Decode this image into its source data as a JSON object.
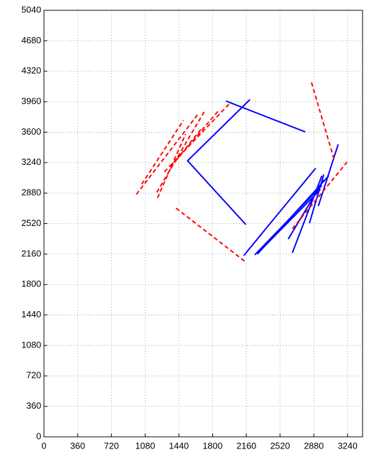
{
  "chart_data": {
    "type": "line",
    "grid": true,
    "xlim": [
      0,
      3400
    ],
    "ylim": [
      0,
      5040
    ],
    "xticks": [
      0,
      360,
      720,
      1080,
      1440,
      1800,
      2160,
      2520,
      2880,
      3240
    ],
    "yticks": [
      0,
      360,
      720,
      1080,
      1440,
      1800,
      2160,
      2520,
      2880,
      3240,
      3600,
      3960,
      4320,
      4680,
      5040
    ],
    "series": [
      {
        "color": "#0000ff",
        "dashed": false,
        "x": [
          1942,
          2789,
          null,
          2198,
          1533,
          2154,
          null,
          2132,
          2899,
          null,
          2249,
          2965,
          null,
          2278,
          3038,
          null,
          2607,
          2986,
          null,
          2651,
          2965,
          null,
          2833,
          2986,
          null,
          2928,
          3140,
          null,
          2307,
          2950
        ],
        "y": [
          3968,
          3603,
          null,
          3985,
          3262,
          2508,
          null,
          2142,
          3173,
          null,
          2150,
          2970,
          null,
          2159,
          3084,
          null,
          2337,
          3035,
          null,
          2175,
          3084,
          null,
          2524,
          3100,
          null,
          2727,
          3457,
          null,
          2199,
          2922
        ]
      },
      {
        "color": "#ff0000",
        "dashed": true,
        "x": [
          986,
          1650,
          null,
          1212,
          1512,
          null,
          1205,
          1709,
          null,
          1044,
          1489,
          null,
          1285,
          1986,
          null,
          1351,
          1869,
          null,
          1417,
          1694,
          null,
          1409,
          2140,
          null,
          2855,
          3096,
          null,
          2651,
          3234
        ],
        "y": [
          2865,
          3822,
          null,
          2824,
          3579,
          null,
          2889,
          3839,
          null,
          2986,
          3741,
          null,
          3132,
          3944,
          null,
          3189,
          3863,
          null,
          3278,
          3660,
          null,
          2702,
          2077,
          null,
          4187,
          3279,
          null,
          2459,
          3246
        ]
      }
    ]
  }
}
